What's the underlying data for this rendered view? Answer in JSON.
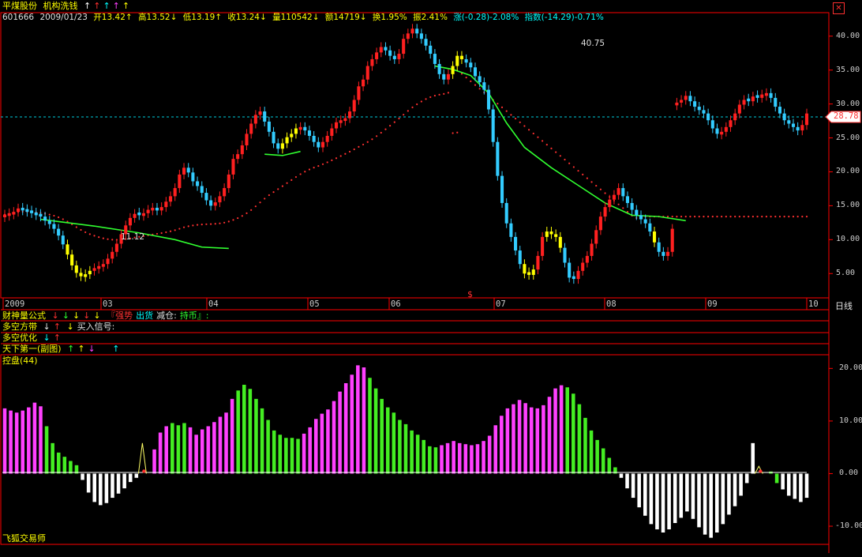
{
  "header": {
    "title": "平煤股份",
    "formula": "机构洗钱",
    "formula_arrows": [
      {
        "glyph": "↑",
        "color": "#ffffff"
      },
      {
        "glyph": "↑",
        "color": "#ff3030"
      },
      {
        "glyph": "↑",
        "color": "#00ffff"
      },
      {
        "glyph": "↑",
        "color": "#ff40ff"
      },
      {
        "glyph": "↑",
        "color": "#ffff00"
      }
    ],
    "quote": {
      "code": "601666",
      "date": "2009/01/23",
      "open": "开13.42↑",
      "high": "高13.52↓",
      "low": "低13.19↑",
      "close": "收13.24↓",
      "vol": "量110542↓",
      "amount": "额14719↓",
      "turnover": "换1.95%",
      "amplitude": "振2.41%",
      "change": "涨(-0.28)-2.08%",
      "index": "指数(-14.29)-0.71%"
    }
  },
  "price_axis": {
    "ticks": [
      "40.00",
      "35.00",
      "30.00",
      "25.00",
      "20.00",
      "15.00",
      "10.00",
      "5.00"
    ],
    "current_price": "28.78",
    "high_label": "40.75",
    "low_label": "11.12",
    "ex_rights_mark": "$"
  },
  "time_axis": {
    "labels": [
      "2009",
      "03",
      "04",
      "05",
      "06",
      "07",
      "08",
      "09",
      "10"
    ],
    "period": "日线"
  },
  "indicators": {
    "line1": {
      "name": "财神量公式",
      "tail": "『强势  出货 减仓 持币』:",
      "strong": "『强势",
      "out": "出货",
      "reduce": "减仓:",
      "hold": "持币』:"
    },
    "line2": {
      "name": "多空方带",
      "buy": "买入信号:"
    },
    "line3": {
      "name": "多空优化"
    },
    "line4": {
      "name": "天下第一(副图)"
    },
    "line5": {
      "name": "控盘(44)"
    }
  },
  "sub_axis": {
    "ticks": [
      "20.00",
      "10.00",
      "0.00",
      "-10.00"
    ]
  },
  "footer": {
    "text": "飞狐交易师"
  },
  "colors": {
    "up": "#ff2020",
    "down": "#33ccff",
    "hold": "#ffff00",
    "ma_green": "#30ff30",
    "ma_red_dots": "#ff3030",
    "bar_magenta": "#ff40ff",
    "bar_green": "#44ee22",
    "bar_white": "#ffffff",
    "grid_border": "#ff0000"
  },
  "chart_data": [
    {
      "type": "line",
      "title": "",
      "series": [
        {
          "name": "",
          "values": [
            13.7,
            13.9,
            14.1,
            14.6,
            14.3,
            14.1,
            13.9,
            13.6,
            13.4,
            12.8,
            12.3,
            11.6,
            10.6,
            9.3,
            7.8,
            6.2,
            5.1,
            4.6,
            4.9,
            5.4,
            5.8,
            6.1,
            6.4,
            7.2,
            8.2,
            9.4,
            10.8,
            12.1,
            13.2,
            13.8,
            13.6,
            13.9,
            14.4,
            14.7,
            14.3,
            14.8,
            15.6,
            16.4,
            17.6,
            19.6,
            20.6,
            19.9,
            18.6,
            17.9,
            16.9,
            15.8,
            15.0,
            15.5,
            16.4,
            17.6,
            19.6,
            21.9,
            22.6,
            23.9,
            25.6,
            27.1,
            28.4,
            28.9,
            27.4,
            25.9,
            24.2,
            23.4,
            24.2,
            25.1,
            25.6,
            26.4,
            26.6,
            26.1,
            25.3,
            24.4,
            23.6,
            24.4,
            25.3,
            26.4,
            27.3,
            27.6,
            27.9,
            28.9,
            30.6,
            32.6,
            33.6,
            35.6,
            36.6,
            37.6,
            38.4,
            37.9,
            37.1,
            36.6,
            37.4,
            39.6,
            40.4,
            41.1,
            40.4,
            39.6,
            38.6,
            37.4,
            35.9,
            34.4,
            33.6,
            34.4,
            35.6,
            37.1,
            36.6,
            36.1,
            35.4,
            34.1,
            33.2,
            32.1,
            29.2,
            24.4,
            19.4,
            15.4,
            12.4,
            10.4,
            8.4,
            6.4,
            5.0,
            4.8,
            5.6,
            7.6,
            10.4,
            11.2,
            10.8,
            10.4,
            8.8,
            6.6,
            4.4,
            4.2,
            5.4,
            6.6,
            7.6,
            9.4,
            11.4,
            13.4,
            14.8,
            15.9,
            16.6,
            17.6,
            16.4,
            15.4,
            14.4,
            13.6,
            13.0,
            12.4,
            11.2,
            9.6,
            8.2,
            7.6,
            8.2,
            11.6,
            30.2,
            30.6,
            31.2,
            30.4,
            29.6,
            29.1,
            28.6,
            27.6,
            26.4,
            25.6,
            25.9,
            26.6,
            27.6,
            28.6,
            29.9,
            30.6,
            30.4,
            31.1,
            30.9,
            31.4,
            31.6,
            30.9,
            29.6,
            28.6,
            27.6,
            27.1,
            26.6,
            26.1,
            26.9,
            28.6
          ]
        }
      ],
      "ylim": [
        2,
        43
      ]
    },
    {
      "type": "bar",
      "title": "",
      "series": [
        {
          "name": "",
          "values": [
            12.4,
            12.0,
            11.6,
            12.0,
            12.6,
            13.5,
            12.8,
            9.0,
            5.8,
            4.0,
            3.2,
            2.4,
            1.6,
            -1.2,
            -3.6,
            -5.4,
            -6.0,
            -5.6,
            -4.6,
            -3.8,
            -2.8,
            -1.6,
            -0.8,
            5.8,
            2.2,
            4.6,
            7.8,
            9.0,
            9.6,
            9.2,
            9.6,
            8.8,
            7.4,
            8.4,
            9.0,
            9.8,
            10.8,
            11.6,
            14.2,
            15.8,
            16.9,
            16.1,
            14.2,
            12.4,
            10.2,
            8.2,
            7.4,
            6.8,
            6.8,
            6.6,
            7.6,
            8.8,
            10.4,
            11.4,
            12.2,
            13.8,
            15.6,
            17.2,
            18.8,
            20.6,
            20.2,
            18.2,
            16.2,
            14.2,
            12.6,
            11.6,
            10.2,
            9.4,
            8.2,
            7.4,
            6.4,
            5.2,
            5.0,
            5.4,
            5.8,
            6.2,
            5.8,
            5.6,
            5.4,
            5.6,
            6.2,
            7.2,
            9.2,
            11.0,
            12.4,
            13.2,
            14.0,
            13.4,
            12.6,
            12.4,
            13.0,
            14.6,
            16.2,
            16.8,
            16.4,
            15.2,
            13.2,
            10.6,
            8.2,
            6.4,
            4.8,
            3.0,
            1.2,
            -0.8,
            -2.8,
            -4.6,
            -6.4,
            -8.0,
            -9.6,
            -10.6,
            -11.2,
            -10.6,
            -9.4,
            -8.4,
            -7.2,
            -8.6,
            -10.2,
            -11.6,
            -12.2,
            -11.2,
            -9.6,
            -7.8,
            -6.2,
            -4.2,
            -1.8,
            5.8,
            1.4,
            0.8,
            0.4,
            -1.8,
            -3.0,
            -4.2,
            -4.8,
            -5.4,
            -4.6
          ],
          "colors": [
            "m",
            "m",
            "m",
            "m",
            "m",
            "m",
            "m",
            "g",
            "g",
            "g",
            "g",
            "g",
            "g",
            "w",
            "w",
            "w",
            "w",
            "w",
            "w",
            "w",
            "w",
            "w",
            "w",
            "y",
            "r",
            "m",
            "m",
            "m",
            "g",
            "g",
            "g",
            "m",
            "m",
            "m",
            "m",
            "m",
            "m",
            "m",
            "m",
            "g",
            "g",
            "g",
            "g",
            "g",
            "g",
            "g",
            "g",
            "g",
            "g",
            "g",
            "m",
            "m",
            "m",
            "m",
            "m",
            "m",
            "m",
            "m",
            "m",
            "m",
            "m",
            "g",
            "g",
            "g",
            "g",
            "g",
            "g",
            "g",
            "g",
            "g",
            "g",
            "g",
            "g",
            "m",
            "m",
            "m",
            "m",
            "m",
            "m",
            "m",
            "m",
            "m",
            "m",
            "m",
            "m",
            "m",
            "m",
            "m",
            "m",
            "m",
            "m",
            "m",
            "m",
            "m",
            "g",
            "g",
            "g",
            "g",
            "g",
            "g",
            "g",
            "g",
            "g",
            "w",
            "w",
            "w",
            "w",
            "w",
            "w",
            "w",
            "w",
            "w",
            "w",
            "w",
            "w",
            "w",
            "w",
            "w",
            "w",
            "w",
            "w",
            "w",
            "w",
            "w",
            "w",
            "w",
            "y",
            "r",
            "g",
            "g",
            "w",
            "w",
            "w",
            "w",
            "w",
            "w"
          ]
        }
      ],
      "ylim": [
        -13,
        22
      ]
    }
  ]
}
